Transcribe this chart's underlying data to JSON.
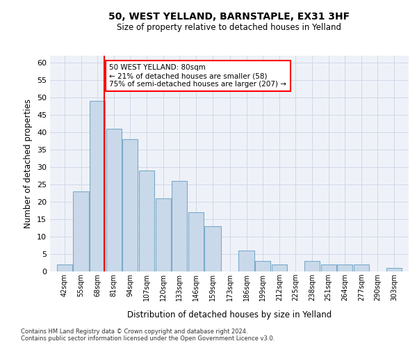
{
  "title1": "50, WEST YELLAND, BARNSTAPLE, EX31 3HF",
  "title2": "Size of property relative to detached houses in Yelland",
  "xlabel": "Distribution of detached houses by size in Yelland",
  "ylabel": "Number of detached properties",
  "bin_labels": [
    "42sqm",
    "55sqm",
    "68sqm",
    "81sqm",
    "94sqm",
    "107sqm",
    "120sqm",
    "133sqm",
    "146sqm",
    "159sqm",
    "173sqm",
    "186sqm",
    "199sqm",
    "212sqm",
    "225sqm",
    "238sqm",
    "251sqm",
    "264sqm",
    "277sqm",
    "290sqm",
    "303sqm"
  ],
  "bar_values": [
    2,
    23,
    49,
    41,
    38,
    29,
    21,
    26,
    17,
    13,
    0,
    6,
    3,
    2,
    0,
    3,
    2,
    2,
    2,
    0,
    1
  ],
  "bin_edges": [
    42,
    55,
    68,
    81,
    94,
    107,
    120,
    133,
    146,
    159,
    173,
    186,
    199,
    212,
    225,
    238,
    251,
    264,
    277,
    290,
    303,
    316
  ],
  "bar_color": "#c9d9ea",
  "bar_edge_color": "#7aaac8",
  "red_line_x": 80,
  "annotation_text": "50 WEST YELLAND: 80sqm\n← 21% of detached houses are smaller (58)\n75% of semi-detached houses are larger (207) →",
  "ylim": [
    0,
    62
  ],
  "yticks": [
    0,
    5,
    10,
    15,
    20,
    25,
    30,
    35,
    40,
    45,
    50,
    55,
    60
  ],
  "grid_color": "#d0d8e8",
  "background_color": "#eef2f8",
  "footer1": "Contains HM Land Registry data © Crown copyright and database right 2024.",
  "footer2": "Contains public sector information licensed under the Open Government Licence v3.0."
}
